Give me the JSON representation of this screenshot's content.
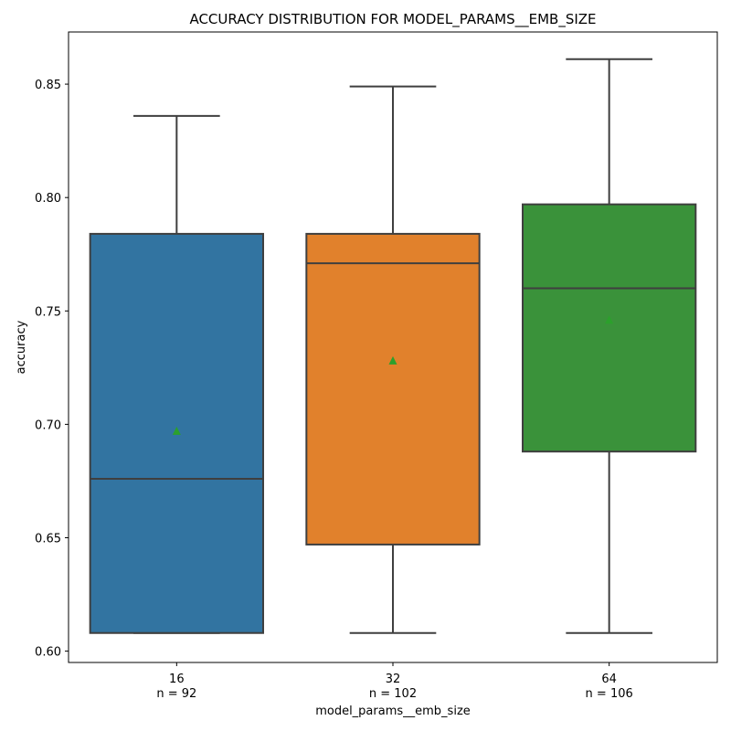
{
  "chart_data": {
    "type": "box",
    "title": "ACCURACY DISTRIBUTION FOR MODEL_PARAMS__EMB_SIZE",
    "xlabel": "model_params__emb_size",
    "ylabel": "accuracy",
    "ylim": [
      0.595,
      0.873
    ],
    "yticks": [
      "0.60",
      "0.65",
      "0.70",
      "0.75",
      "0.80",
      "0.85"
    ],
    "grid": false,
    "legend": "none",
    "categories": [
      {
        "label": "16",
        "count_label": "n = 92",
        "color": "#3274a1",
        "whisker_low": 0.608,
        "q1": 0.608,
        "median": 0.676,
        "q3": 0.784,
        "whisker_high": 0.836,
        "mean": 0.697
      },
      {
        "label": "32",
        "count_label": "n = 102",
        "color": "#e1812c",
        "whisker_low": 0.608,
        "q1": 0.647,
        "median": 0.771,
        "q3": 0.784,
        "whisker_high": 0.849,
        "mean": 0.728
      },
      {
        "label": "64",
        "count_label": "n = 106",
        "color": "#3a923a",
        "whisker_low": 0.608,
        "q1": 0.688,
        "median": 0.76,
        "q3": 0.797,
        "whisker_high": 0.861,
        "mean": 0.746
      }
    ],
    "mean_marker_color": "#2ca02c",
    "line_color": "#3f3f3f"
  }
}
